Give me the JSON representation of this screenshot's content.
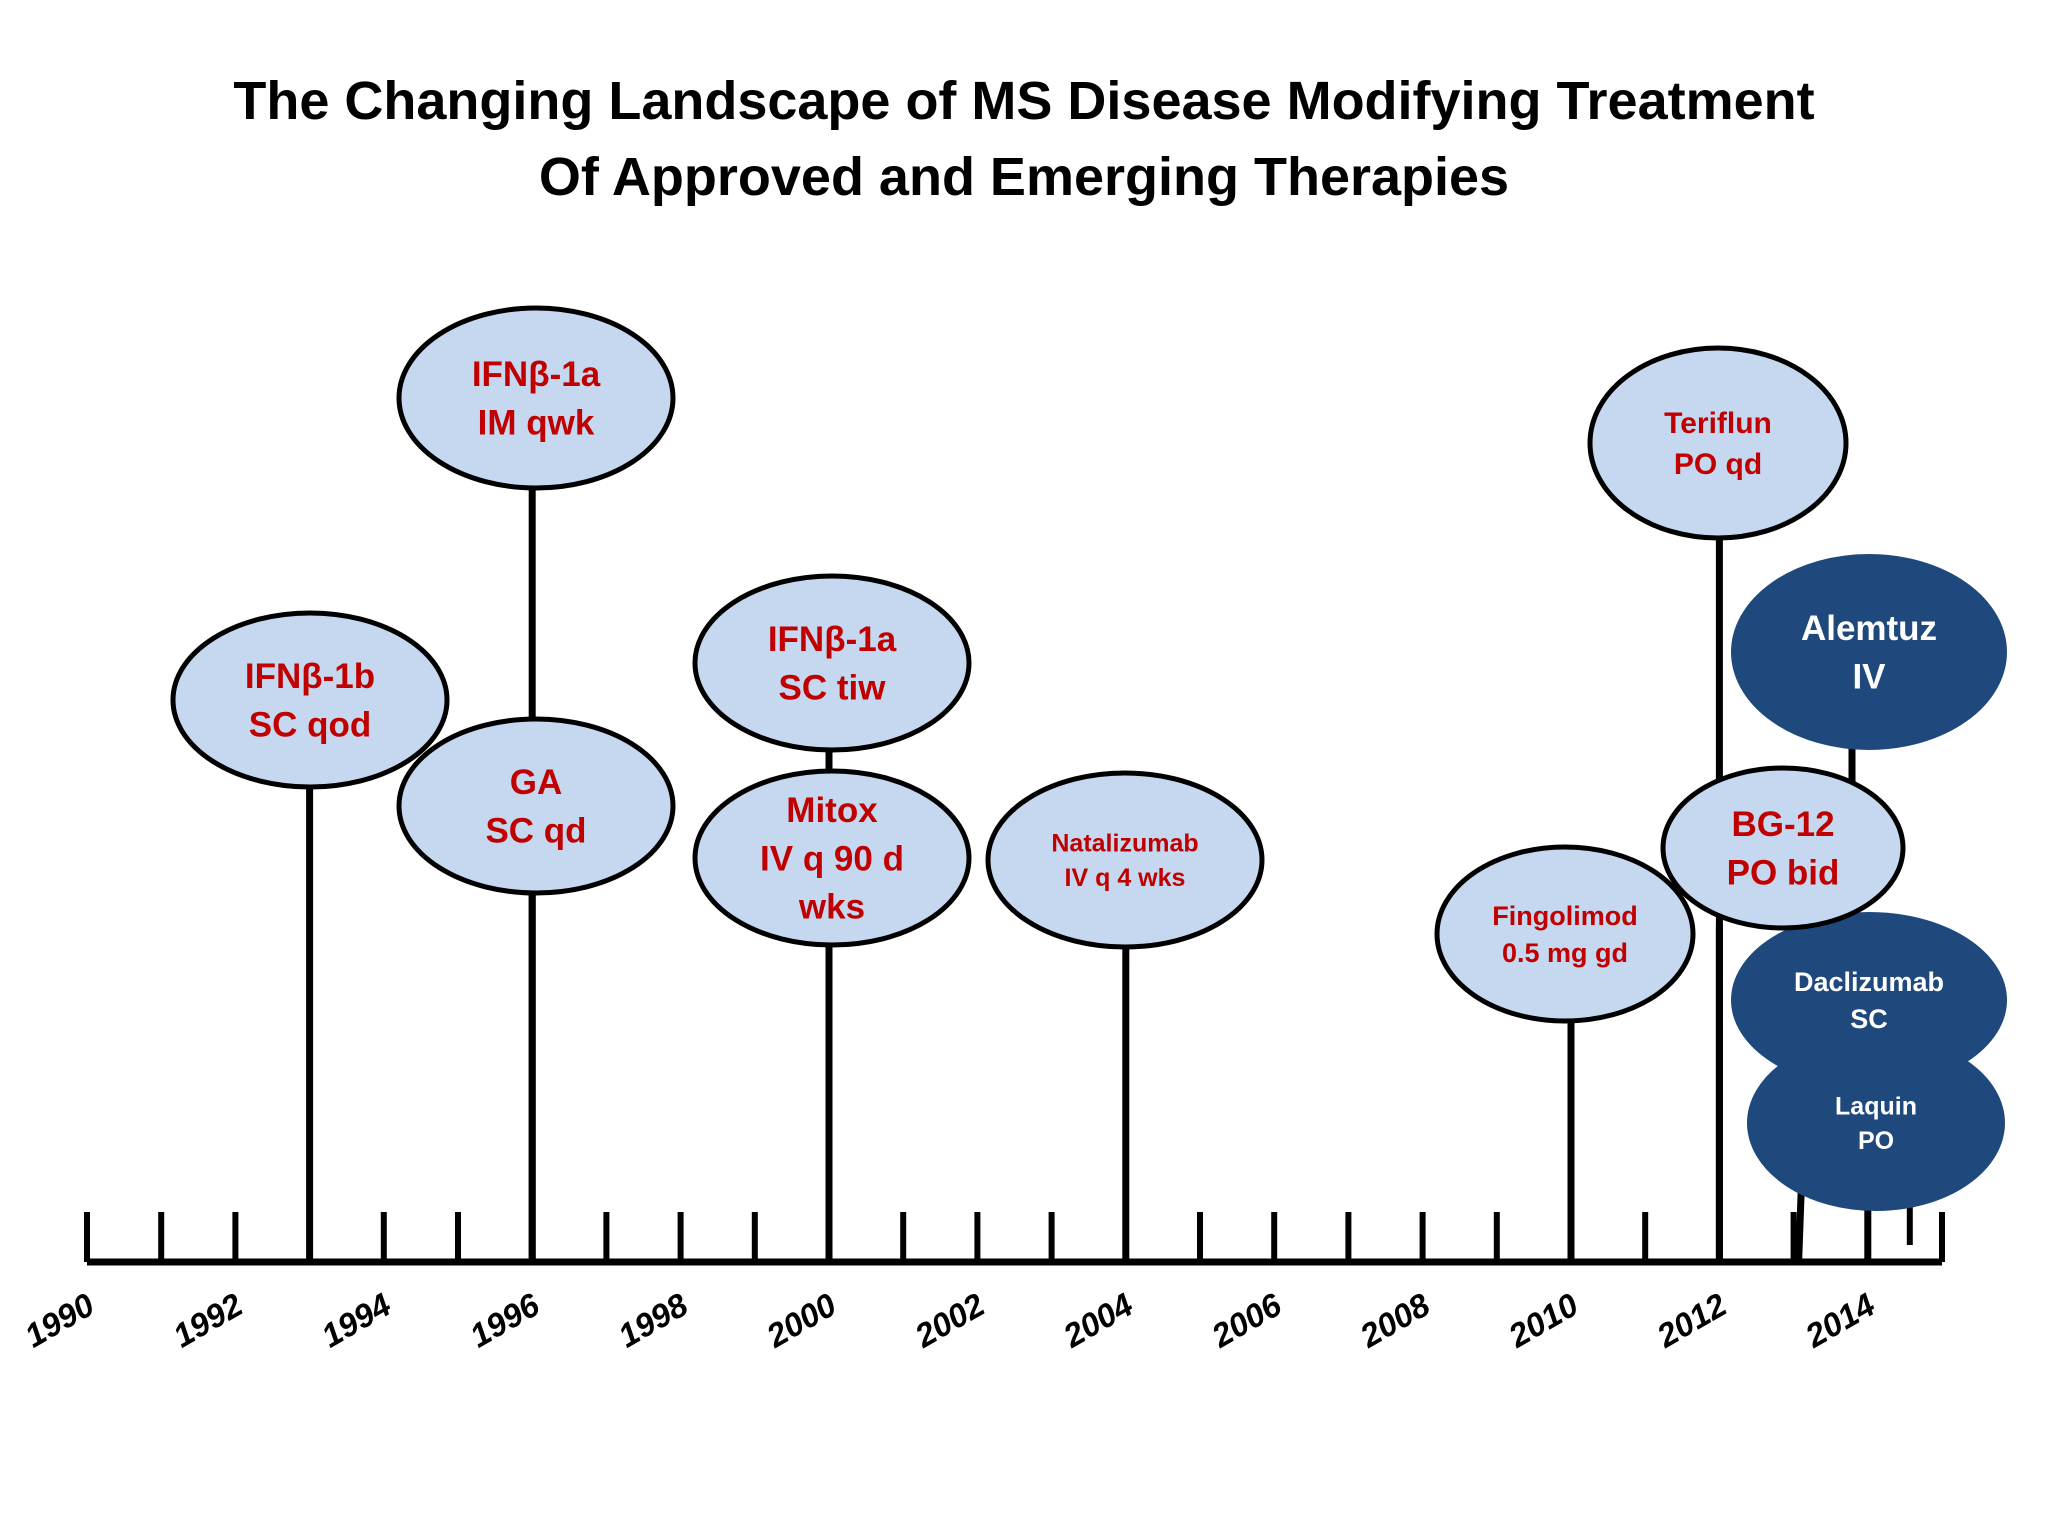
{
  "title": {
    "line1": "The Changing Landscape of MS Disease Modifying Treatment",
    "line2": "Of  Approved and Emerging Therapies"
  },
  "axis": {
    "year_start": 1990,
    "year_end": 2015,
    "year_labels": [
      "1990",
      "1992",
      "1994",
      "1996",
      "1998",
      "2000",
      "2002",
      "2004",
      "2006",
      "2008",
      "2010",
      "2012",
      "2014"
    ]
  },
  "colors": {
    "approved_fill": "#c5d8ef",
    "approved_text": "#c00000",
    "emerging_fill": "#1f497d",
    "emerging_text": "#ffffff",
    "line": "#000000"
  },
  "therapies": [
    {
      "name": "ifnb-1b",
      "lines": [
        "IFNβ-1b",
        "SC qod"
      ],
      "year": 1993,
      "status": "approved"
    },
    {
      "name": "ifnb-1a-im",
      "lines": [
        "IFNβ-1a",
        "IM qwk"
      ],
      "year": 1996,
      "status": "approved"
    },
    {
      "name": "ga",
      "lines": [
        "GA",
        "SC qd"
      ],
      "year": 1996,
      "status": "approved"
    },
    {
      "name": "ifnb-1a-sc",
      "lines": [
        "IFNβ-1a",
        "SC tiw"
      ],
      "year": 2000,
      "status": "approved"
    },
    {
      "name": "mitox",
      "lines": [
        "Mitox",
        "IV q 90 d",
        "wks"
      ],
      "year": 2000,
      "status": "approved"
    },
    {
      "name": "natalizumab",
      "lines": [
        "Natalizumab",
        "IV q 4 wks"
      ],
      "year": 2004,
      "status": "approved"
    },
    {
      "name": "fingolimod",
      "lines": [
        "Fingolimod",
        "0.5 mg gd"
      ],
      "year": 2010,
      "status": "approved"
    },
    {
      "name": "teriflun",
      "lines": [
        "Teriflun",
        "PO qd"
      ],
      "year": 2012,
      "status": "approved"
    },
    {
      "name": "bg-12",
      "lines": [
        "BG-12",
        "PO bid"
      ],
      "year": 2012,
      "status": "approved"
    },
    {
      "name": "alemtuz",
      "lines": [
        "Alemtuz",
        "IV"
      ],
      "year": 2014,
      "status": "emerging"
    },
    {
      "name": "laquin",
      "lines": [
        "Laquin",
        "PO"
      ],
      "year": 2013,
      "status": "emerging"
    },
    {
      "name": "daclizumab",
      "lines": [
        "Daclizumab",
        "SC"
      ],
      "year": 2014,
      "status": "emerging"
    }
  ]
}
